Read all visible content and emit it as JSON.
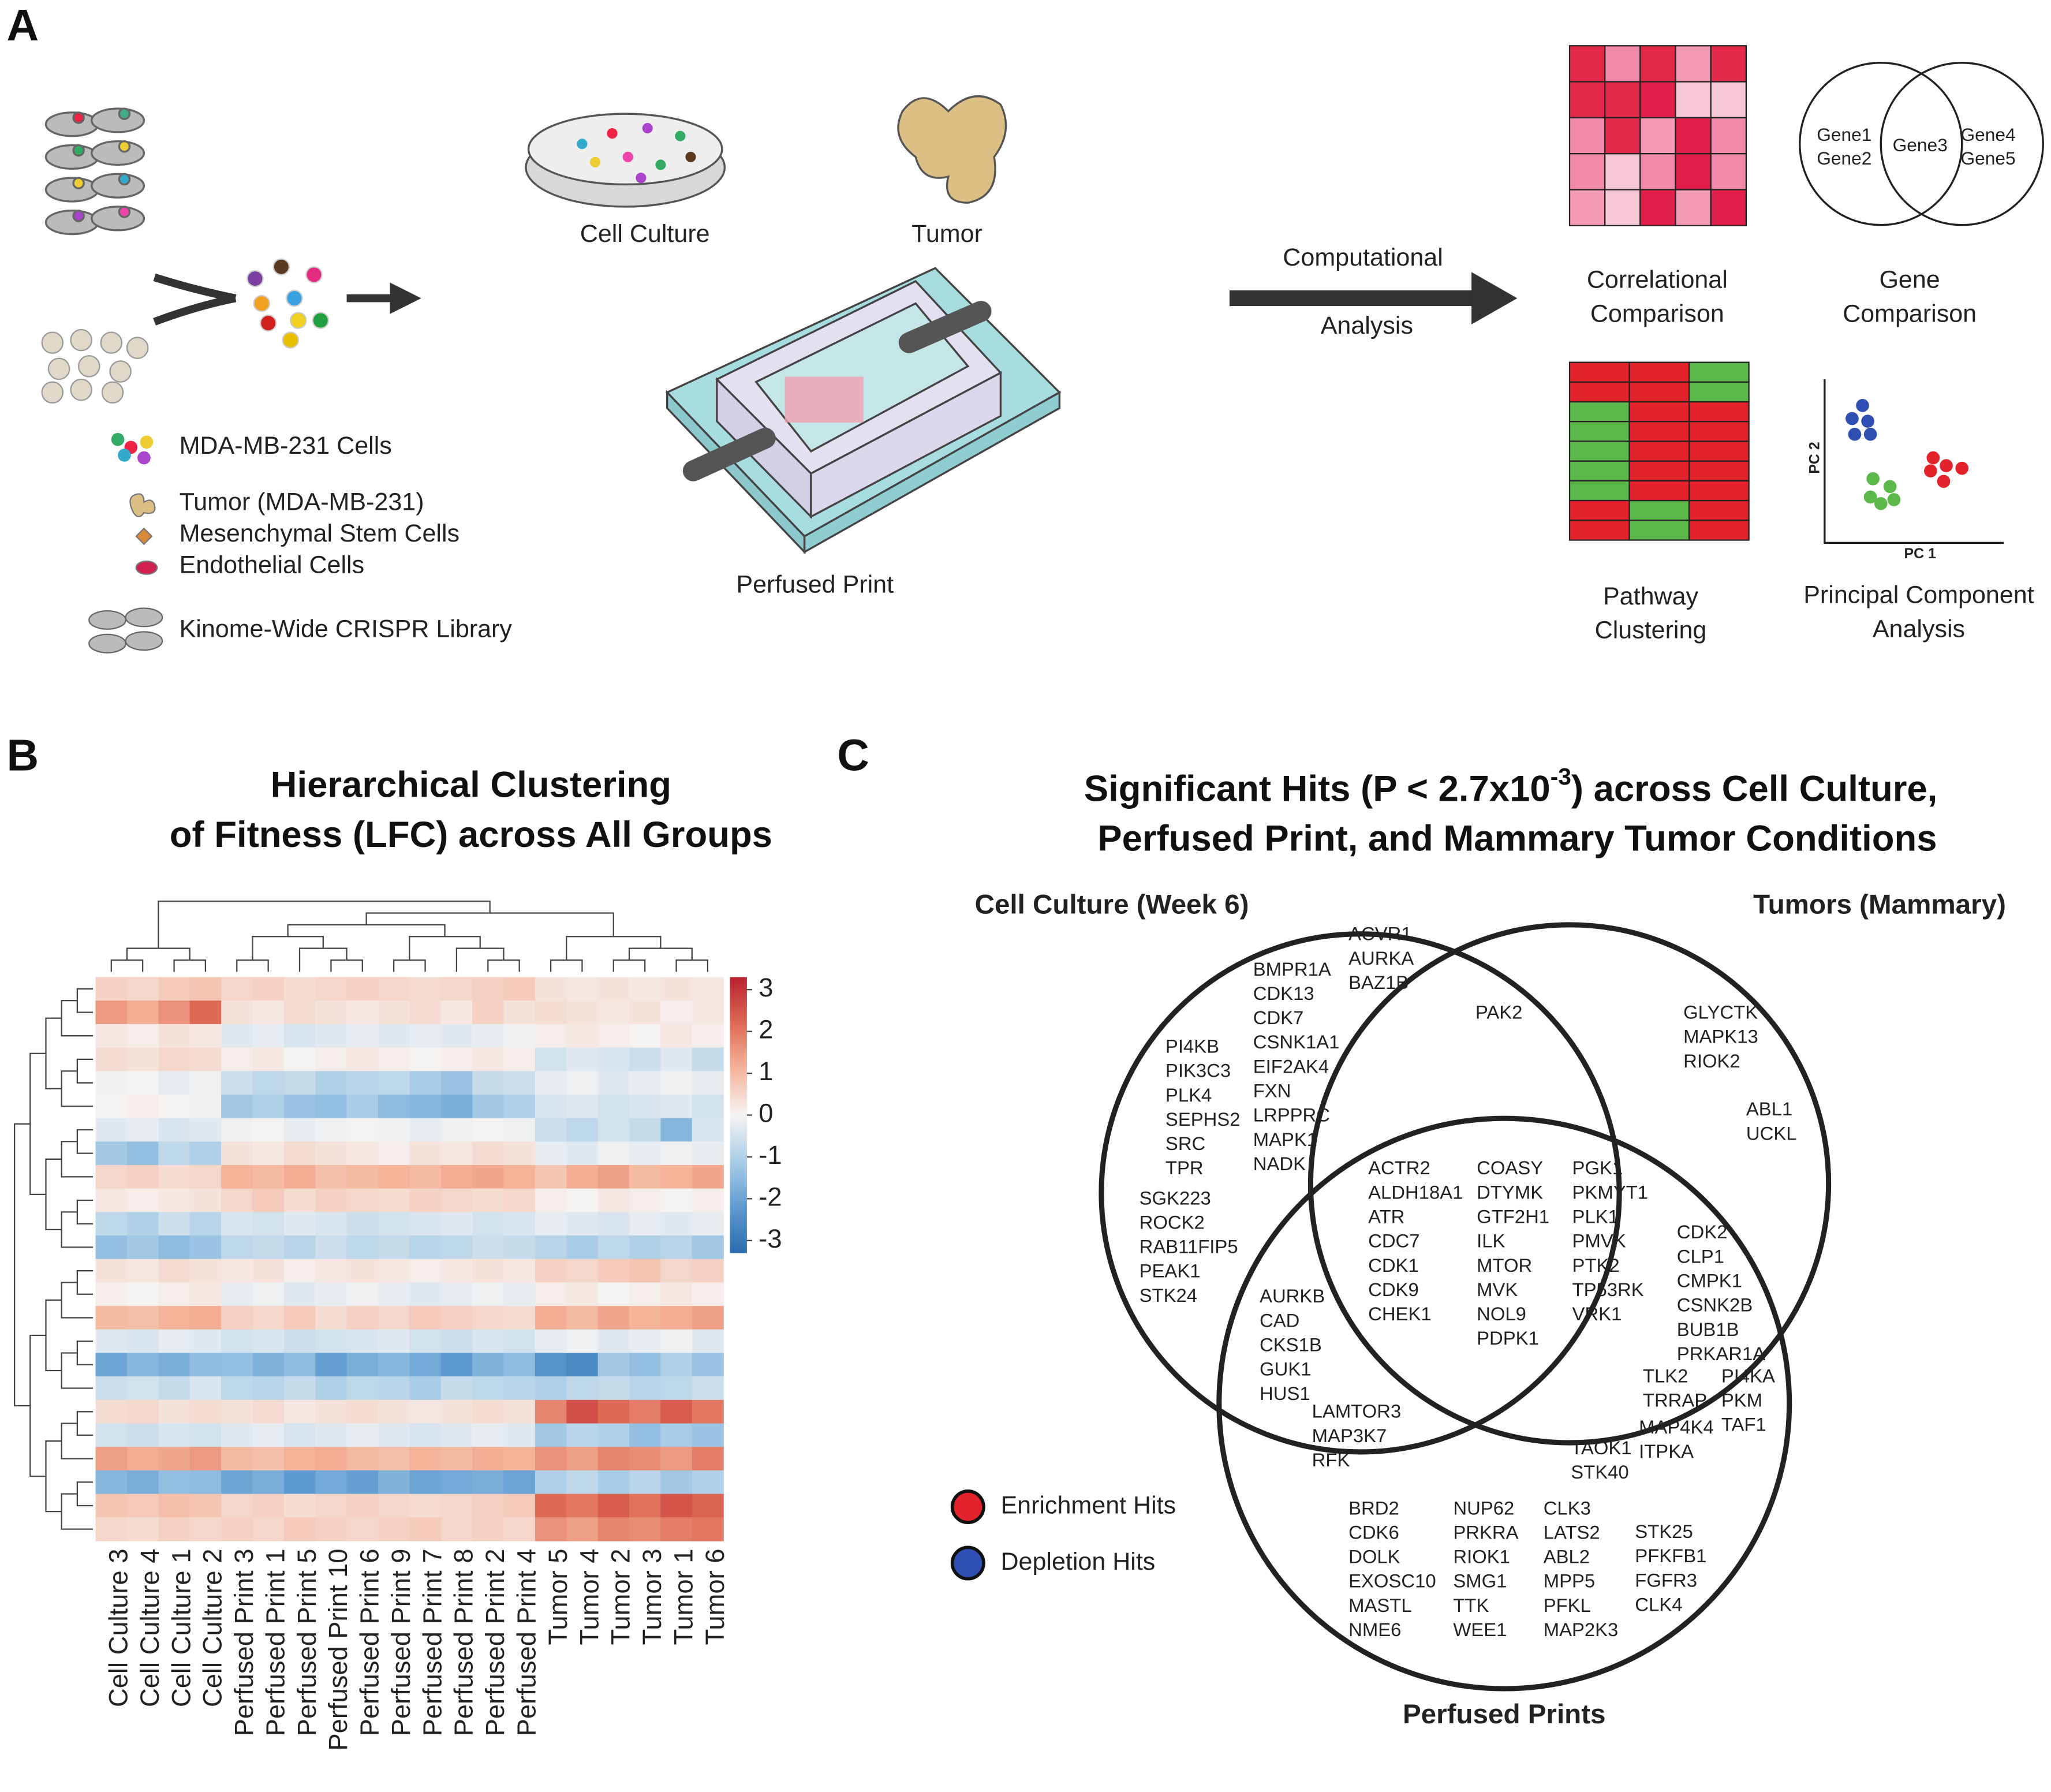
{
  "panel_a": {
    "letter": "A",
    "cell_culture": "Cell Culture",
    "tumor": "Tumor",
    "perfused_print": "Perfused Print",
    "arrow_label": [
      "Computational",
      "Analysis"
    ],
    "legend": [
      "MDA-MB-231 Cells",
      "Tumor (MDA-MB-231)",
      "Mesenchymal Stem Cells",
      "Endothelial Cells",
      "Kinome-Wide CRISPR Library"
    ],
    "correlational": [
      "Correlational",
      "Comparison"
    ],
    "gene": [
      "Gene",
      "Comparison"
    ],
    "pathway": [
      "Pathway",
      "Clustering"
    ],
    "pca": [
      "Principal Component",
      "Analysis"
    ],
    "venn_genes": [
      "Gene1",
      "Gene2",
      "Gene3",
      "Gene4",
      "Gene5"
    ],
    "pca_axes": [
      "PC 1",
      "PC 2"
    ]
  },
  "chart_data": {
    "type": "heatmap",
    "letter": "B",
    "title": [
      "Hierarchical Clustering",
      "of Fitness (LFC) across All Groups"
    ],
    "columns": [
      "Cell Culture 3",
      "Cell Culture 4",
      "Cell Culture 1",
      "Cell Culture 2",
      "Perfused Print 3",
      "Perfused Print 1",
      "Perfused Print 5",
      "Perfused Print 10",
      "Perfused Print 6",
      "Perfused Print 9",
      "Perfused Print 7",
      "Perfused Print 8",
      "Perfused Print 2",
      "Perfused Print 4",
      "Tumor 5",
      "Tumor 4",
      "Tumor 2",
      "Tumor 3",
      "Tumor 1",
      "Tumor 6"
    ],
    "values": [
      [
        0.6,
        0.5,
        0.7,
        0.8,
        0.5,
        0.6,
        0.4,
        0.5,
        0.6,
        0.5,
        0.4,
        0.5,
        0.6,
        0.7,
        0.3,
        0.2,
        0.3,
        0.2,
        0.3,
        0.2
      ],
      [
        1.5,
        1.2,
        1.6,
        2.2,
        0.3,
        0.2,
        0.4,
        0.3,
        0.2,
        0.3,
        0.4,
        0.2,
        0.6,
        0.3,
        0.4,
        0.3,
        0.2,
        0.3,
        0.1,
        0.2
      ],
      [
        0.2,
        0.1,
        0.3,
        0.2,
        -0.3,
        -0.2,
        -0.4,
        -0.3,
        -0.2,
        -0.3,
        -0.2,
        -0.3,
        -0.2,
        -0.1,
        0.1,
        0.2,
        0.1,
        0.0,
        0.2,
        0.1
      ],
      [
        0.4,
        0.3,
        0.5,
        0.4,
        0.1,
        0.2,
        0.0,
        0.1,
        0.2,
        0.1,
        0.0,
        0.1,
        0.2,
        0.1,
        -0.5,
        -0.3,
        -0.4,
        -0.6,
        -0.3,
        -0.7
      ],
      [
        -0.1,
        0.0,
        -0.2,
        -0.1,
        -0.6,
        -0.8,
        -0.7,
        -1.0,
        -0.9,
        -0.8,
        -1.1,
        -1.3,
        -0.7,
        -0.6,
        -0.2,
        -0.1,
        -0.3,
        -0.2,
        -0.1,
        -0.2
      ],
      [
        0.0,
        0.1,
        0.0,
        -0.1,
        -1.2,
        -1.0,
        -1.3,
        -1.4,
        -1.1,
        -1.5,
        -1.6,
        -1.8,
        -1.2,
        -1.0,
        -0.4,
        -0.3,
        -0.5,
        -0.4,
        -0.3,
        -0.5
      ],
      [
        -0.3,
        -0.2,
        -0.4,
        -0.3,
        -0.1,
        0.0,
        -0.2,
        -0.1,
        0.0,
        -0.1,
        -0.2,
        -0.1,
        0.0,
        -0.1,
        -0.6,
        -0.8,
        -0.5,
        -0.7,
        -1.6,
        -0.4
      ],
      [
        -1.2,
        -1.4,
        -0.8,
        -1.0,
        0.3,
        0.2,
        0.4,
        0.3,
        0.2,
        0.1,
        0.3,
        0.2,
        0.4,
        0.3,
        -0.2,
        -0.3,
        -0.1,
        -0.2,
        -0.1,
        -0.2
      ],
      [
        0.5,
        0.6,
        0.4,
        0.5,
        1.1,
        1.0,
        1.2,
        0.9,
        1.0,
        1.1,
        1.0,
        1.2,
        1.3,
        1.1,
        0.8,
        1.2,
        1.4,
        1.0,
        1.1,
        1.3
      ],
      [
        0.2,
        0.1,
        0.2,
        0.3,
        0.5,
        0.7,
        0.4,
        0.6,
        0.5,
        0.4,
        0.6,
        0.5,
        0.4,
        0.5,
        0.1,
        0.0,
        0.2,
        0.1,
        0.0,
        0.1
      ],
      [
        -0.8,
        -1.0,
        -0.6,
        -0.9,
        -0.4,
        -0.5,
        -0.3,
        -0.4,
        -0.6,
        -0.5,
        -0.4,
        -0.3,
        -0.5,
        -0.4,
        -0.2,
        -0.3,
        -0.4,
        -0.2,
        -0.3,
        -0.2
      ],
      [
        -1.4,
        -1.2,
        -1.5,
        -1.3,
        -0.8,
        -0.7,
        -0.9,
        -0.6,
        -0.8,
        -0.7,
        -0.9,
        -0.8,
        -0.6,
        -0.7,
        -0.9,
        -1.1,
        -0.8,
        -1.0,
        -0.9,
        -1.2
      ],
      [
        0.3,
        0.2,
        0.4,
        0.3,
        0.2,
        0.3,
        0.1,
        0.2,
        0.3,
        0.2,
        0.1,
        0.2,
        0.3,
        0.2,
        0.6,
        0.5,
        0.7,
        0.8,
        0.5,
        0.6
      ],
      [
        0.1,
        0.0,
        0.1,
        0.2,
        -0.2,
        -0.1,
        -0.3,
        -0.2,
        -0.1,
        -0.2,
        -0.3,
        -0.2,
        -0.1,
        -0.2,
        0.1,
        0.2,
        0.0,
        0.1,
        0.2,
        0.1
      ],
      [
        1.0,
        0.9,
        1.1,
        1.2,
        0.6,
        0.5,
        0.7,
        0.4,
        0.6,
        0.5,
        0.7,
        0.6,
        0.5,
        0.4,
        1.2,
        1.0,
        1.3,
        1.1,
        1.2,
        1.4
      ],
      [
        -0.3,
        -0.4,
        -0.2,
        -0.3,
        -0.5,
        -0.4,
        -0.6,
        -0.5,
        -0.4,
        -0.3,
        -0.5,
        -0.6,
        -0.4,
        -0.5,
        -0.2,
        -0.1,
        -0.3,
        -0.2,
        -0.1,
        -0.3
      ],
      [
        -2.0,
        -1.6,
        -1.8,
        -1.5,
        -1.4,
        -1.7,
        -1.5,
        -2.1,
        -1.8,
        -1.6,
        -1.9,
        -2.2,
        -1.7,
        -1.5,
        -2.4,
        -2.6,
        -1.2,
        -1.4,
        -1.0,
        -1.3
      ],
      [
        -0.6,
        -0.5,
        -0.7,
        -0.4,
        -0.8,
        -0.9,
        -0.7,
        -1.0,
        -0.8,
        -0.9,
        -1.1,
        -0.7,
        -0.8,
        -0.9,
        -1.0,
        -0.8,
        -0.7,
        -0.9,
        -0.8,
        -0.6
      ],
      [
        0.4,
        0.5,
        0.3,
        0.4,
        0.3,
        0.4,
        0.2,
        0.3,
        0.4,
        0.3,
        0.2,
        0.3,
        0.4,
        0.3,
        1.8,
        2.6,
        2.2,
        1.9,
        2.4,
        2.0
      ],
      [
        -0.5,
        -0.6,
        -0.4,
        -0.5,
        -0.3,
        -0.2,
        -0.4,
        -0.3,
        -0.2,
        -0.3,
        -0.4,
        -0.3,
        -0.2,
        -0.3,
        -1.2,
        -0.9,
        -1.0,
        -1.4,
        -1.1,
        -1.3
      ],
      [
        1.4,
        1.2,
        1.3,
        1.5,
        1.0,
        0.9,
        1.1,
        1.2,
        1.0,
        0.9,
        1.1,
        1.0,
        1.2,
        1.1,
        1.6,
        1.4,
        1.8,
        1.7,
        1.5,
        1.9
      ],
      [
        -1.6,
        -1.8,
        -1.4,
        -1.5,
        -2.0,
        -1.8,
        -2.2,
        -1.9,
        -2.1,
        -1.7,
        -2.0,
        -1.9,
        -1.8,
        -2.0,
        -1.0,
        -0.8,
        -1.1,
        -0.9,
        -1.2,
        -1.0
      ],
      [
        0.8,
        0.7,
        0.9,
        0.8,
        0.5,
        0.6,
        0.4,
        0.5,
        0.6,
        0.5,
        0.4,
        0.5,
        0.6,
        0.7,
        2.2,
        2.0,
        2.4,
        2.1,
        2.5,
        2.3
      ],
      [
        0.5,
        0.4,
        0.6,
        0.5,
        0.6,
        0.5,
        0.7,
        0.6,
        0.5,
        0.6,
        0.7,
        0.5,
        0.6,
        0.5,
        1.6,
        1.4,
        1.8,
        1.7,
        1.9,
        2.0
      ]
    ],
    "zlim": [
      -3.3,
      3.3
    ],
    "zticks": [
      3,
      2,
      1,
      0,
      -1,
      -2,
      -3
    ],
    "colorscale": [
      "#2b6cb0",
      "#5f9bd0",
      "#a9cde6",
      "#f5f3f2",
      "#f4b49a",
      "#de6a55",
      "#b82130"
    ]
  },
  "panel_c": {
    "letter": "C",
    "title": [
      "Significant Hits (P < 2.7x10",
      "-3",
      ") across Cell Culture,",
      "Perfused Print, and Mammary Tumor Conditions"
    ],
    "sets": [
      "Cell Culture (Week 6)",
      "Tumors (Mammary)",
      "Perfused Prints"
    ],
    "legend": [
      {
        "label": "Enrichment Hits",
        "color": "#e3232b"
      },
      {
        "label": "Depletion Hits",
        "color": "#2f4fb3"
      }
    ],
    "groups": [
      {
        "color": "#3a55a8",
        "genes": [
          "ACVR1",
          "AURKA",
          "BAZ1B"
        ]
      },
      {
        "color": "#3a55a8",
        "genes": [
          "BMPR1A",
          "CDK13",
          "CDK7",
          "CSNK1A1",
          "EIF2AK4",
          "FXN",
          "LRPPRC",
          "MAPK1",
          "NADK"
        ]
      },
      {
        "color": "#3a55a8",
        "genes": [
          "PI4KB",
          "PIK3C3",
          "PLK4",
          "SEPHS2",
          "SRC",
          "TPR"
        ]
      },
      {
        "color": "#e3232b",
        "genes": [
          "SGK223",
          "ROCK2",
          "RAB11FIP5",
          "PEAK1",
          "STK24"
        ]
      },
      {
        "color": "#3a55a8",
        "genes": [
          "PAK2"
        ]
      },
      {
        "color": "#3a55a8",
        "genes": [
          "GLYCTK",
          "MAPK13",
          "RIOK2"
        ]
      },
      {
        "color": "#e3232b",
        "genes": [
          "ABL1",
          "UCKL"
        ]
      },
      {
        "color": "#3a55a8",
        "genes": [
          "ACTR2",
          "ALDH18A1",
          "ATR",
          "CDC7",
          "CDK1",
          "CDK9",
          "CHEK1"
        ]
      },
      {
        "color": "#3a55a8",
        "genes": [
          "COASY",
          "DTYMK",
          "GTF2H1",
          "ILK",
          "MTOR",
          "MVK",
          "NOL9",
          "PDPK1"
        ]
      },
      {
        "color": "#3a55a8",
        "genes": [
          "PGK1",
          "PKMYT1",
          "PLK1",
          "PMVK",
          "PTK2",
          "TP53RK",
          "VRK1"
        ]
      },
      {
        "color": "#3a55a8",
        "genes": [
          "AURKB",
          "CAD",
          "CKS1B",
          "GUK1",
          "HUS1"
        ]
      },
      {
        "color": "#3a55a8",
        "genes": [
          "LAMTOR3",
          "MAP3K7",
          "RFK"
        ]
      },
      {
        "color": "#3a55a8",
        "genes": [
          "CDK2",
          "CLP1",
          "CMPK1",
          "CSNK2B",
          "BUB1B",
          "PRKAR1A"
        ]
      },
      {
        "color": "#3a55a8",
        "genes": [
          "TLK2",
          "TRRAP"
        ]
      },
      {
        "color": "#3a55a8",
        "genes": [
          "PI4KA",
          "PKM",
          "TAF1"
        ]
      },
      {
        "color": "#e3232b",
        "genes": [
          "MAP4K4",
          "ITPKA"
        ]
      },
      {
        "color": "#e3232b",
        "genes": [
          "TAOK1",
          "STK40"
        ]
      },
      {
        "color": "#3a55a8",
        "genes": [
          "BRD2",
          "CDK6",
          "DOLK",
          "EXOSC10",
          "MASTL",
          "NME6"
        ]
      },
      {
        "color": "#3a55a8",
        "genes": [
          "NUP62",
          "PRKRA",
          "RIOK1",
          "SMG1",
          "TTK",
          "WEE1"
        ]
      },
      {
        "color": "#e3232b",
        "genes": [
          "CLK3",
          "LATS2",
          "ABL2",
          "MPP5",
          "PFKL",
          "MAP2K3"
        ]
      },
      {
        "color": "#e3232b",
        "genes": [
          "STK25",
          "PFKFB1",
          "FGFR3",
          "CLK4"
        ]
      }
    ]
  }
}
